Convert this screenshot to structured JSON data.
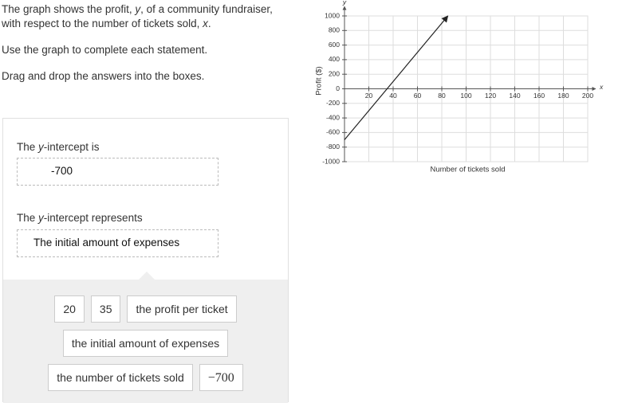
{
  "instructions": {
    "intro": [
      "The graph shows the profit, ",
      "y",
      ", of a community fundraiser, with respect to the number of tickets sold, ",
      "x",
      "."
    ],
    "use": "Use the graph to complete each statement.",
    "drag": "Drag and drop the answers into the boxes."
  },
  "statements": [
    {
      "prompt": [
        "The ",
        "y",
        "-intercept is"
      ],
      "answer": "-700"
    },
    {
      "prompt": [
        "The ",
        "y",
        "-intercept represents"
      ],
      "answer": "The initial amount of expenses"
    }
  ],
  "choices": [
    [
      "20",
      "35",
      "the profit per ticket"
    ],
    [
      "the initial amount of expenses"
    ],
    [
      "the number of tickets sold",
      "−700"
    ]
  ],
  "chart_data": {
    "type": "line",
    "x_label": "Number of tickets sold",
    "y_label": "Profit ($)",
    "x_axis_name": "x",
    "y_axis_name": "y",
    "xlim": [
      0,
      200
    ],
    "ylim": [
      -1000,
      1000
    ],
    "xticks": [
      20,
      40,
      60,
      80,
      100,
      120,
      140,
      160,
      180,
      200
    ],
    "yticks": [
      -1000,
      -800,
      -600,
      -400,
      -200,
      0,
      200,
      400,
      600,
      800,
      1000
    ],
    "grid": true,
    "series": [
      {
        "x": [
          0,
          85
        ],
        "values": [
          -700,
          1000
        ],
        "color": "#222222"
      }
    ]
  }
}
